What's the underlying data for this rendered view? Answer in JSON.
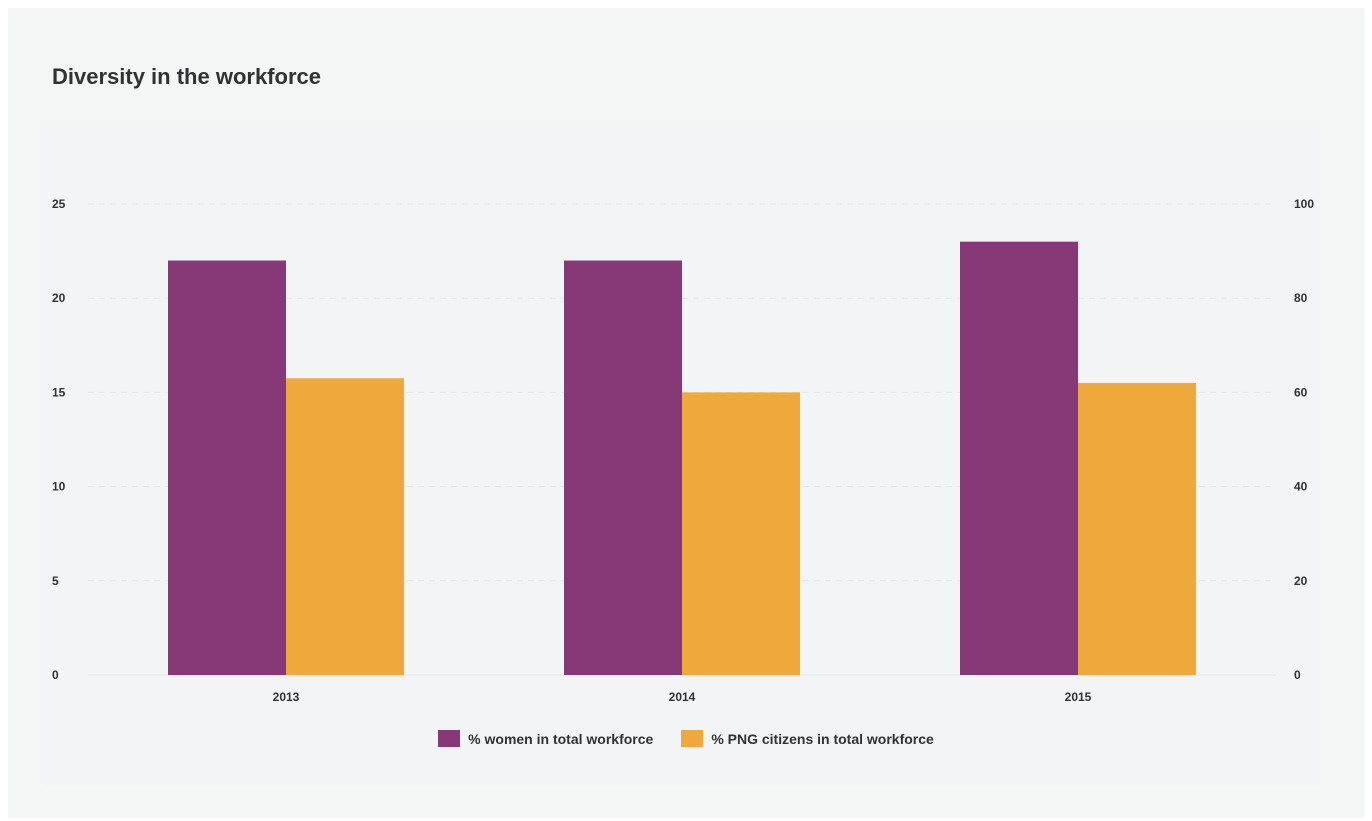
{
  "title": "Diversity in the workforce",
  "chart_data": {
    "type": "bar",
    "categories": [
      "2013",
      "2014",
      "2015"
    ],
    "series": [
      {
        "name": "% women in total workforce",
        "axis": "left",
        "color": "#873876",
        "values": [
          22,
          22,
          23
        ]
      },
      {
        "name": "% PNG citizens in total workforce",
        "axis": "right",
        "color": "#efa83b",
        "values": [
          63,
          60,
          62
        ]
      }
    ],
    "left_axis": {
      "ticks": [
        "0",
        "5",
        "10",
        "15",
        "20",
        "25"
      ],
      "ylim": [
        0,
        25
      ]
    },
    "right_axis": {
      "ticks": [
        "0",
        "20",
        "40",
        "60",
        "80",
        "100"
      ],
      "ylim": [
        0,
        100
      ]
    },
    "xlabel": "",
    "ylabel": "",
    "grid": true,
    "legend_position": "bottom-center"
  }
}
